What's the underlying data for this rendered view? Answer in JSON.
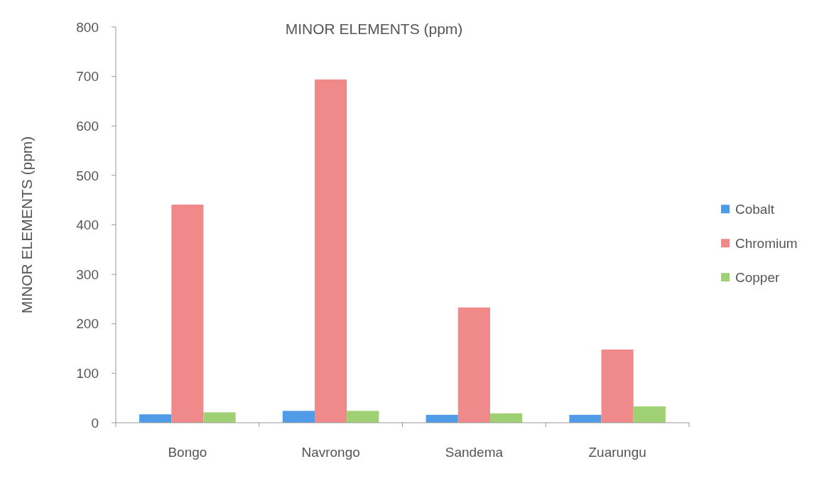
{
  "chart_data": {
    "type": "bar",
    "title": "MINOR ELEMENTS (ppm)",
    "ylabel": "MINOR ELEMENTS (ppm)",
    "categories": [
      "Bongo",
      "Navrongo",
      "Sandema",
      "Zuarungu"
    ],
    "series": [
      {
        "name": "Cobalt",
        "color": "#4f9be8",
        "values": [
          17,
          24,
          16,
          16
        ]
      },
      {
        "name": "Chromium",
        "color": "#f08a8a",
        "values": [
          441,
          694,
          233,
          148
        ]
      },
      {
        "name": "Copper",
        "color": "#9fd174",
        "values": [
          21,
          24,
          19,
          33
        ]
      }
    ],
    "ylim": [
      0,
      800
    ],
    "yticks": [
      0,
      100,
      200,
      300,
      400,
      500,
      600,
      700,
      800
    ],
    "grid": false,
    "legend": "right"
  }
}
